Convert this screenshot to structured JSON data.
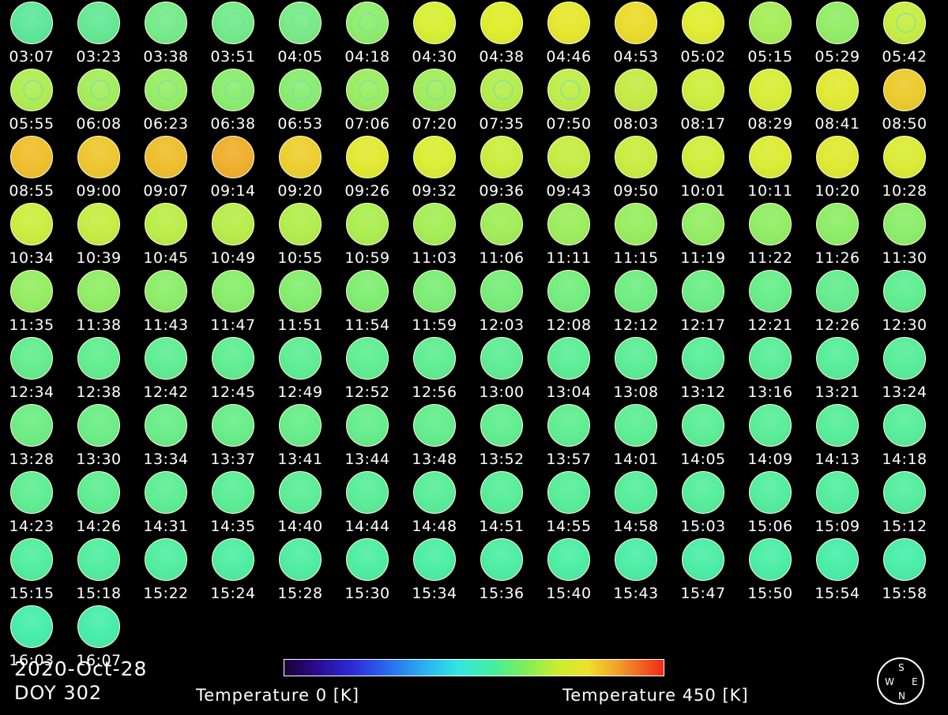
{
  "frames": [
    {
      "time": "03:07",
      "color": "#5fe89c"
    },
    {
      "time": "03:23",
      "color": "#66ea96"
    },
    {
      "time": "03:38",
      "color": "#78ec8a"
    },
    {
      "time": "03:51",
      "color": "#74ec8c"
    },
    {
      "time": "04:05",
      "color": "#7aec88"
    },
    {
      "time": "04:18",
      "color": "#90ee70"
    },
    {
      "time": "04:30",
      "color": "#d8f038"
    },
    {
      "time": "04:38",
      "color": "#e0ee30"
    },
    {
      "time": "04:46",
      "color": "#e6e832"
    },
    {
      "time": "04:53",
      "color": "#ecdc30"
    },
    {
      "time": "05:02",
      "color": "#e0ee36"
    },
    {
      "time": "05:15",
      "color": "#a6ee5a"
    },
    {
      "time": "05:29",
      "color": "#94ee6a"
    },
    {
      "time": "05:42",
      "color": "#c8ee46"
    },
    {
      "time": "05:55",
      "color": "#b0ee56"
    },
    {
      "time": "06:08",
      "color": "#a6ee5e"
    },
    {
      "time": "06:23",
      "color": "#98ee68"
    },
    {
      "time": "06:38",
      "color": "#8cee72"
    },
    {
      "time": "06:53",
      "color": "#8aee74"
    },
    {
      "time": "07:06",
      "color": "#9cee64"
    },
    {
      "time": "07:20",
      "color": "#a2ee60"
    },
    {
      "time": "07:35",
      "color": "#b6ee50"
    },
    {
      "time": "07:50",
      "color": "#c0ee4c"
    },
    {
      "time": "08:03",
      "color": "#c6ec48"
    },
    {
      "time": "08:17",
      "color": "#d0ee40"
    },
    {
      "time": "08:29",
      "color": "#d8ee3a"
    },
    {
      "time": "08:41",
      "color": "#e2ea36"
    },
    {
      "time": "08:50",
      "color": "#eccc30"
    },
    {
      "time": "08:55",
      "color": "#f0c030"
    },
    {
      "time": "09:00",
      "color": "#eec832"
    },
    {
      "time": "09:07",
      "color": "#eec030"
    },
    {
      "time": "09:14",
      "color": "#f0b030"
    },
    {
      "time": "09:20",
      "color": "#eed032"
    },
    {
      "time": "09:26",
      "color": "#e2ea36"
    },
    {
      "time": "09:32",
      "color": "#dcee38"
    },
    {
      "time": "09:36",
      "color": "#ccee42"
    },
    {
      "time": "09:43",
      "color": "#c6ee46"
    },
    {
      "time": "09:50",
      "color": "#caee44"
    },
    {
      "time": "10:01",
      "color": "#d2ee3e"
    },
    {
      "time": "10:11",
      "color": "#dcec38"
    },
    {
      "time": "10:20",
      "color": "#e0ea36"
    },
    {
      "time": "10:28",
      "color": "#dcec38"
    },
    {
      "time": "10:34",
      "color": "#ccee42"
    },
    {
      "time": "10:39",
      "color": "#c6ee46"
    },
    {
      "time": "10:45",
      "color": "#bcee4c"
    },
    {
      "time": "10:49",
      "color": "#b8ee4e"
    },
    {
      "time": "10:55",
      "color": "#b4ee50"
    },
    {
      "time": "10:59",
      "color": "#aeee54"
    },
    {
      "time": "11:03",
      "color": "#a6ee5a"
    },
    {
      "time": "11:06",
      "color": "#a2ee5c"
    },
    {
      "time": "11:11",
      "color": "#9eee60"
    },
    {
      "time": "11:15",
      "color": "#9aee62"
    },
    {
      "time": "11:19",
      "color": "#96ee66"
    },
    {
      "time": "11:22",
      "color": "#92ee68"
    },
    {
      "time": "11:26",
      "color": "#90ee6a"
    },
    {
      "time": "11:30",
      "color": "#8eee6c"
    },
    {
      "time": "11:35",
      "color": "#96ee66"
    },
    {
      "time": "11:38",
      "color": "#92ee68"
    },
    {
      "time": "11:43",
      "color": "#8eee6c"
    },
    {
      "time": "11:47",
      "color": "#8aee6e"
    },
    {
      "time": "11:51",
      "color": "#86ee72"
    },
    {
      "time": "11:54",
      "color": "#82ee74"
    },
    {
      "time": "11:59",
      "color": "#7eee78"
    },
    {
      "time": "12:03",
      "color": "#7aee7c"
    },
    {
      "time": "12:08",
      "color": "#76ee80"
    },
    {
      "time": "12:12",
      "color": "#72ee84"
    },
    {
      "time": "12:17",
      "color": "#6eee88"
    },
    {
      "time": "12:21",
      "color": "#6aee8c"
    },
    {
      "time": "12:26",
      "color": "#66ee90"
    },
    {
      "time": "12:30",
      "color": "#62ee94"
    },
    {
      "time": "12:34",
      "color": "#66ee90"
    },
    {
      "time": "12:38",
      "color": "#64ee92"
    },
    {
      "time": "12:42",
      "color": "#62ee94"
    },
    {
      "time": "12:45",
      "color": "#62ee94"
    },
    {
      "time": "12:49",
      "color": "#60ee96"
    },
    {
      "time": "12:52",
      "color": "#62ee94"
    },
    {
      "time": "12:56",
      "color": "#62ee94"
    },
    {
      "time": "13:00",
      "color": "#60ee96"
    },
    {
      "time": "13:04",
      "color": "#5eee98"
    },
    {
      "time": "13:08",
      "color": "#5eee98"
    },
    {
      "time": "13:12",
      "color": "#5cee9a"
    },
    {
      "time": "13:16",
      "color": "#5cee9a"
    },
    {
      "time": "13:21",
      "color": "#5aee9c"
    },
    {
      "time": "13:24",
      "color": "#5aee9c"
    },
    {
      "time": "13:28",
      "color": "#70ee86"
    },
    {
      "time": "13:30",
      "color": "#6eee88"
    },
    {
      "time": "13:34",
      "color": "#6cee8a"
    },
    {
      "time": "13:37",
      "color": "#6aee8c"
    },
    {
      "time": "13:41",
      "color": "#6aee8c"
    },
    {
      "time": "13:44",
      "color": "#68ee8e"
    },
    {
      "time": "13:48",
      "color": "#66ee90"
    },
    {
      "time": "13:52",
      "color": "#64ee92"
    },
    {
      "time": "13:57",
      "color": "#62ee94"
    },
    {
      "time": "14:01",
      "color": "#60ee96"
    },
    {
      "time": "14:05",
      "color": "#5eee98"
    },
    {
      "time": "14:09",
      "color": "#5cee9a"
    },
    {
      "time": "14:13",
      "color": "#5aee9c"
    },
    {
      "time": "14:18",
      "color": "#5aee9c"
    },
    {
      "time": "14:23",
      "color": "#62ee94"
    },
    {
      "time": "14:26",
      "color": "#62ee94"
    },
    {
      "time": "14:31",
      "color": "#60ee96"
    },
    {
      "time": "14:35",
      "color": "#5eee98"
    },
    {
      "time": "14:40",
      "color": "#5eee98"
    },
    {
      "time": "14:44",
      "color": "#5cee9a"
    },
    {
      "time": "14:48",
      "color": "#5cee9a"
    },
    {
      "time": "14:51",
      "color": "#5aee9c"
    },
    {
      "time": "14:55",
      "color": "#5aee9c"
    },
    {
      "time": "14:58",
      "color": "#58ee9e"
    },
    {
      "time": "15:03",
      "color": "#58ee9e"
    },
    {
      "time": "15:06",
      "color": "#56eea0"
    },
    {
      "time": "15:09",
      "color": "#56eea0"
    },
    {
      "time": "15:12",
      "color": "#56eea0"
    },
    {
      "time": "15:15",
      "color": "#54eea2"
    },
    {
      "time": "15:18",
      "color": "#54eea2"
    },
    {
      "time": "15:22",
      "color": "#54eea2"
    },
    {
      "time": "15:24",
      "color": "#52eea4"
    },
    {
      "time": "15:28",
      "color": "#52eea4"
    },
    {
      "time": "15:30",
      "color": "#52eea4"
    },
    {
      "time": "15:34",
      "color": "#50eea6"
    },
    {
      "time": "15:36",
      "color": "#50eea6"
    },
    {
      "time": "15:40",
      "color": "#50eea6"
    },
    {
      "time": "15:43",
      "color": "#4eeea8"
    },
    {
      "time": "15:47",
      "color": "#4eeea8"
    },
    {
      "time": "15:50",
      "color": "#4eeea8"
    },
    {
      "time": "15:54",
      "color": "#4ceeaa"
    },
    {
      "time": "15:58",
      "color": "#4ceeaa"
    },
    {
      "time": "16:03",
      "color": "#4aeeac"
    },
    {
      "time": "16:07",
      "color": "#4aeeac"
    }
  ],
  "footer": {
    "date": "2020-Oct-28",
    "doy": "DOY 302",
    "colorbar_min_label": "Temperature 0 [K]",
    "colorbar_max_label": "Temperature 450 [K]"
  },
  "colorbar": {
    "min": 0,
    "max": 450,
    "unit": "K",
    "colormap": "rainbow"
  },
  "compass": {
    "north": "N",
    "south": "S",
    "east": "E",
    "west": "W"
  },
  "colors": {
    "background": "#000000",
    "text": "#ffffff"
  }
}
